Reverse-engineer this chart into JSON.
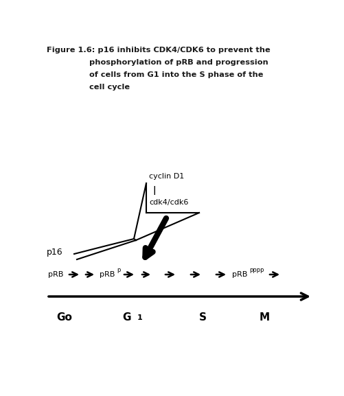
{
  "title_line1": "Figure 1.6: p16 inhibits CDK4/CDK6 to prevent the",
  "title_line2": "phosphorylation of pRB and progression",
  "title_line3": "of cells from G1 into the S phase of the",
  "title_line4": "cell cycle",
  "bg_color": "#ffffff",
  "text_color": "#1a1a1a",
  "figsize": [
    5.01,
    5.77
  ],
  "dpi": 100
}
